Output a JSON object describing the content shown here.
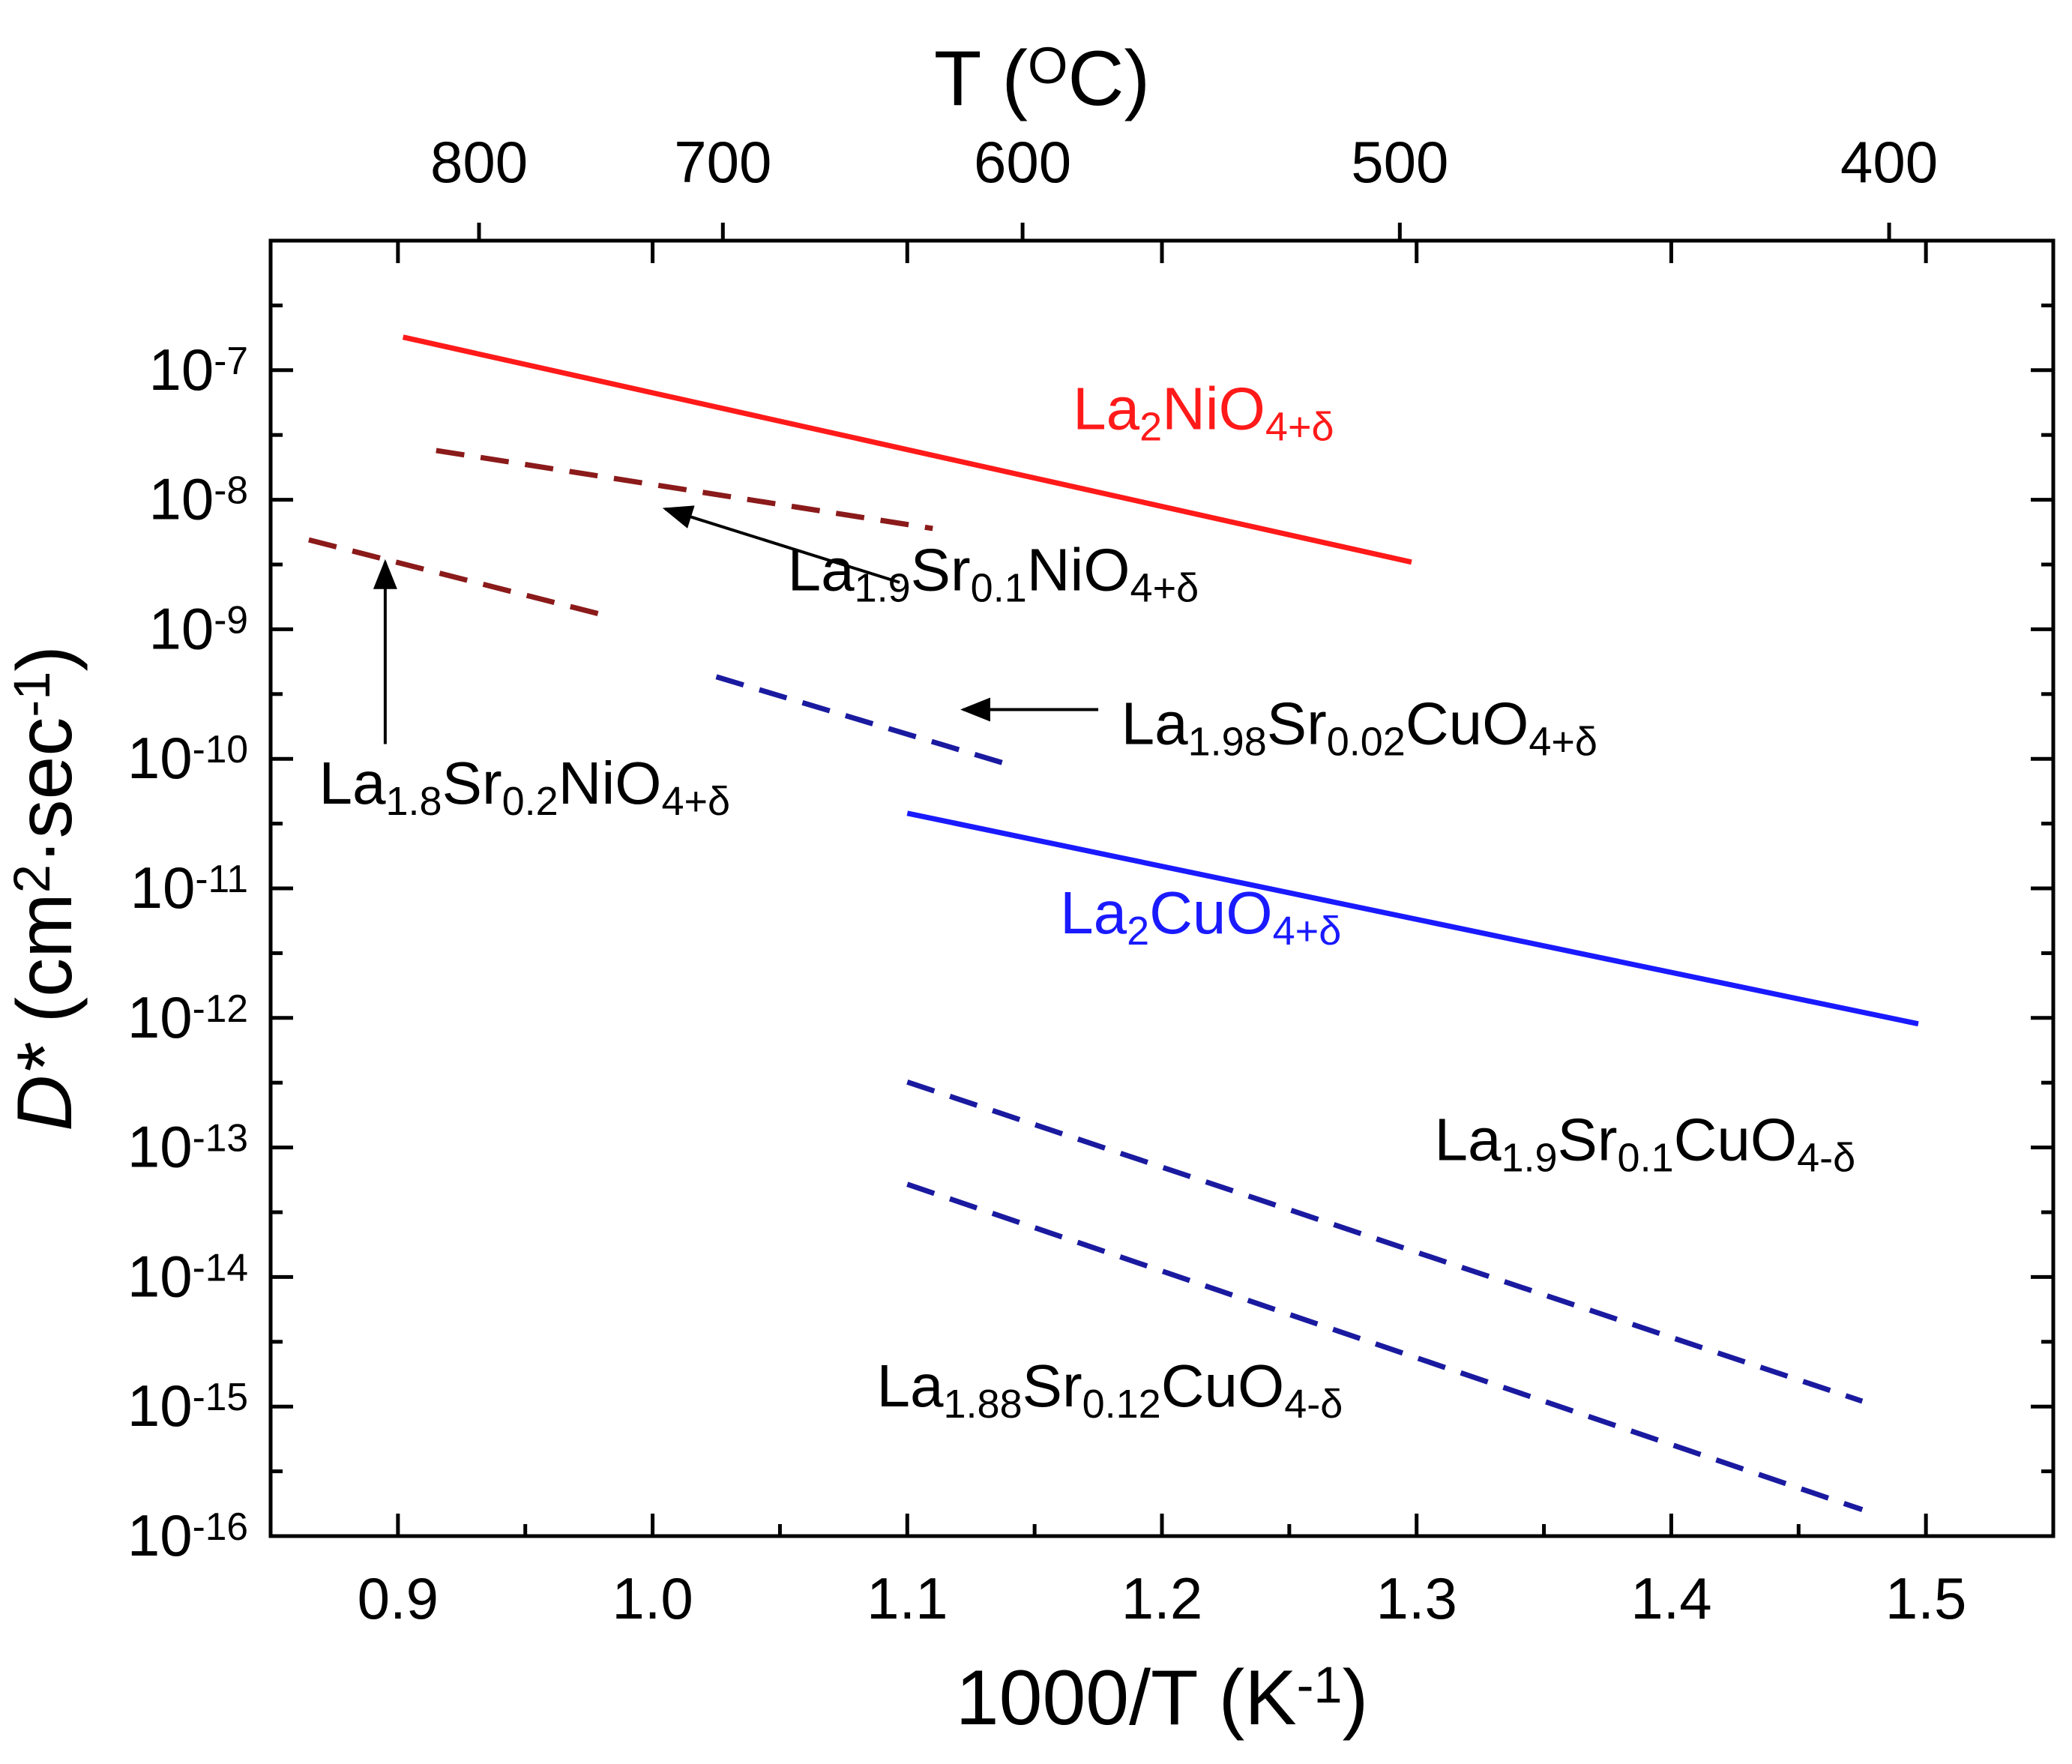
{
  "chart_data": {
    "type": "line",
    "title": "",
    "xlabel": "1000/T (K",
    "xlabel_sup": "-1",
    "xlabel_end": ")",
    "ylabel": "D* (cm",
    "ylabel_sup1": "2",
    "ylabel_mid": "·sec",
    "ylabel_sup2": "-1",
    "ylabel_end": ")",
    "top_axis_label": "T (",
    "top_axis_label_sup": "O",
    "top_axis_label_end": "C)",
    "xlim": [
      0.85,
      1.55
    ],
    "ylim": [
      1e-16,
      1e-06
    ],
    "yscale": "log",
    "grid": false,
    "x_ticks": [
      {
        "value": 0.9,
        "label": "0.9"
      },
      {
        "value": 1.0,
        "label": "1.0"
      },
      {
        "value": 1.1,
        "label": "1.1"
      },
      {
        "value": 1.2,
        "label": "1.2"
      },
      {
        "value": 1.3,
        "label": "1.3"
      },
      {
        "value": 1.4,
        "label": "1.4"
      },
      {
        "value": 1.5,
        "label": "1.5"
      }
    ],
    "x_minor_ticks": [
      0.85,
      0.95,
      1.05,
      1.15,
      1.25,
      1.35,
      1.45,
      1.55
    ],
    "y_ticks": [
      {
        "exp": -7,
        "base": "10",
        "sup": "-7"
      },
      {
        "exp": -8,
        "base": "10",
        "sup": "-8"
      },
      {
        "exp": -9,
        "base": "10",
        "sup": "-9"
      },
      {
        "exp": -10,
        "base": "10",
        "sup": "-10"
      },
      {
        "exp": -11,
        "base": "10",
        "sup": "-11"
      },
      {
        "exp": -12,
        "base": "10",
        "sup": "-12"
      },
      {
        "exp": -13,
        "base": "10",
        "sup": "-13"
      },
      {
        "exp": -14,
        "base": "10",
        "sup": "-14"
      },
      {
        "exp": -15,
        "base": "10",
        "sup": "-15"
      },
      {
        "exp": -16,
        "base": "10",
        "sup": "-16"
      }
    ],
    "top_ticks": [
      {
        "celsius": 800,
        "label": "800"
      },
      {
        "celsius": 700,
        "label": "700"
      },
      {
        "celsius": 600,
        "label": "600"
      },
      {
        "celsius": 500,
        "label": "500"
      },
      {
        "celsius": 400,
        "label": "400"
      }
    ],
    "series": [
      {
        "id": "la2nio4",
        "style": "solid",
        "color": "#ff1a1a",
        "points": [
          [
            0.902,
            1.8e-07
          ],
          [
            1.298,
            3.3e-09
          ]
        ],
        "label_parts": [
          [
            "La",
            "n"
          ],
          [
            "2",
            "sub"
          ],
          [
            "NiO",
            "n"
          ],
          [
            "4+δ",
            "sub"
          ]
        ],
        "label_at": [
          1.165,
          3.5e-08
        ],
        "label_color": "#ff1a1a"
      },
      {
        "id": "la19sr01nio4",
        "style": "dashed",
        "color": "#8b1a1a",
        "points": [
          [
            0.915,
            2.4e-08
          ],
          [
            1.11,
            6e-09
          ]
        ],
        "label_parts": [
          [
            "La",
            "n"
          ],
          [
            "1.9",
            "sub"
          ],
          [
            "Sr",
            "n"
          ],
          [
            "0.1",
            "sub"
          ],
          [
            "NiO",
            "n"
          ],
          [
            "4+δ",
            "sub"
          ]
        ],
        "label_at": [
          1.053,
          2e-09
        ],
        "label_color": "#000000"
      },
      {
        "id": "la18sr02nio4",
        "style": "dashed",
        "color": "#8b1a1a",
        "points": [
          [
            0.865,
            4.9e-09
          ],
          [
            0.98,
            1.3e-09
          ]
        ],
        "label_parts": [
          [
            "La",
            "n"
          ],
          [
            "1.8",
            "sub"
          ],
          [
            "Sr",
            "n"
          ],
          [
            "0.2",
            "sub"
          ],
          [
            "NiO",
            "n"
          ],
          [
            "4+δ",
            "sub"
          ]
        ],
        "label_at": [
          0.869,
          4.5e-11
        ],
        "label_color": "#000000"
      },
      {
        "id": "la198sr002cuo4",
        "style": "dashed",
        "color": "#1a1aa0",
        "points": [
          [
            1.025,
            4.3e-10
          ],
          [
            1.14,
            9e-11
          ]
        ],
        "label_parts": [
          [
            "La",
            "n"
          ],
          [
            "1.98",
            "sub"
          ],
          [
            "Sr",
            "n"
          ],
          [
            "0.02",
            "sub"
          ],
          [
            "CuO",
            "n"
          ],
          [
            "4+δ",
            "sub"
          ]
        ],
        "label_at": [
          1.184,
          1.3e-10
        ],
        "label_color": "#000000"
      },
      {
        "id": "la2cuo4",
        "style": "solid",
        "color": "#1a1aff",
        "points": [
          [
            1.1,
            3.8e-11
          ],
          [
            1.497,
            9e-13
          ]
        ],
        "label_parts": [
          [
            "La",
            "n"
          ],
          [
            "2",
            "sub"
          ],
          [
            "CuO",
            "n"
          ],
          [
            "4+δ",
            "sub"
          ]
        ],
        "label_at": [
          1.16,
          4.5e-12
        ],
        "label_color": "#1a1aff"
      },
      {
        "id": "la19sr01cuo4",
        "style": "dashed",
        "color": "#1a1aa0",
        "points": [
          [
            1.1,
            3.2e-13
          ],
          [
            1.475,
            1.1e-15
          ]
        ],
        "label_parts": [
          [
            "La",
            "n"
          ],
          [
            "1.9",
            "sub"
          ],
          [
            "Sr",
            "n"
          ],
          [
            "0.1",
            "sub"
          ],
          [
            "CuO",
            "n"
          ],
          [
            "4-δ",
            "sub"
          ]
        ],
        "label_at": [
          1.307,
          8e-14
        ],
        "label_color": "#000000"
      },
      {
        "id": "la188sr012cuo4",
        "style": "dashed",
        "color": "#1a1aa0",
        "points": [
          [
            1.1,
            5.2e-14
          ],
          [
            1.475,
            1.6e-16
          ]
        ],
        "label_parts": [
          [
            "La",
            "n"
          ],
          [
            "1.88",
            "sub"
          ],
          [
            "Sr",
            "n"
          ],
          [
            "0.12",
            "sub"
          ],
          [
            "CuO",
            "n"
          ],
          [
            "4-δ",
            "sub"
          ]
        ],
        "label_at": [
          1.088,
          1e-15
        ],
        "label_color": "#000000"
      }
    ],
    "arrows": [
      {
        "target": "la19sr01nio4",
        "from": [
          1.097,
          2.3e-09
        ],
        "to": [
          1.005,
          8.5e-09
        ]
      },
      {
        "target": "la18sr02nio4",
        "from": [
          0.895,
          1.3e-10
        ],
        "to": [
          0.895,
          3.3e-09
        ]
      },
      {
        "target": "la198sr002cuo4",
        "from": [
          1.175,
          2.4e-10
        ],
        "to": [
          1.122,
          2.4e-10
        ]
      }
    ]
  }
}
